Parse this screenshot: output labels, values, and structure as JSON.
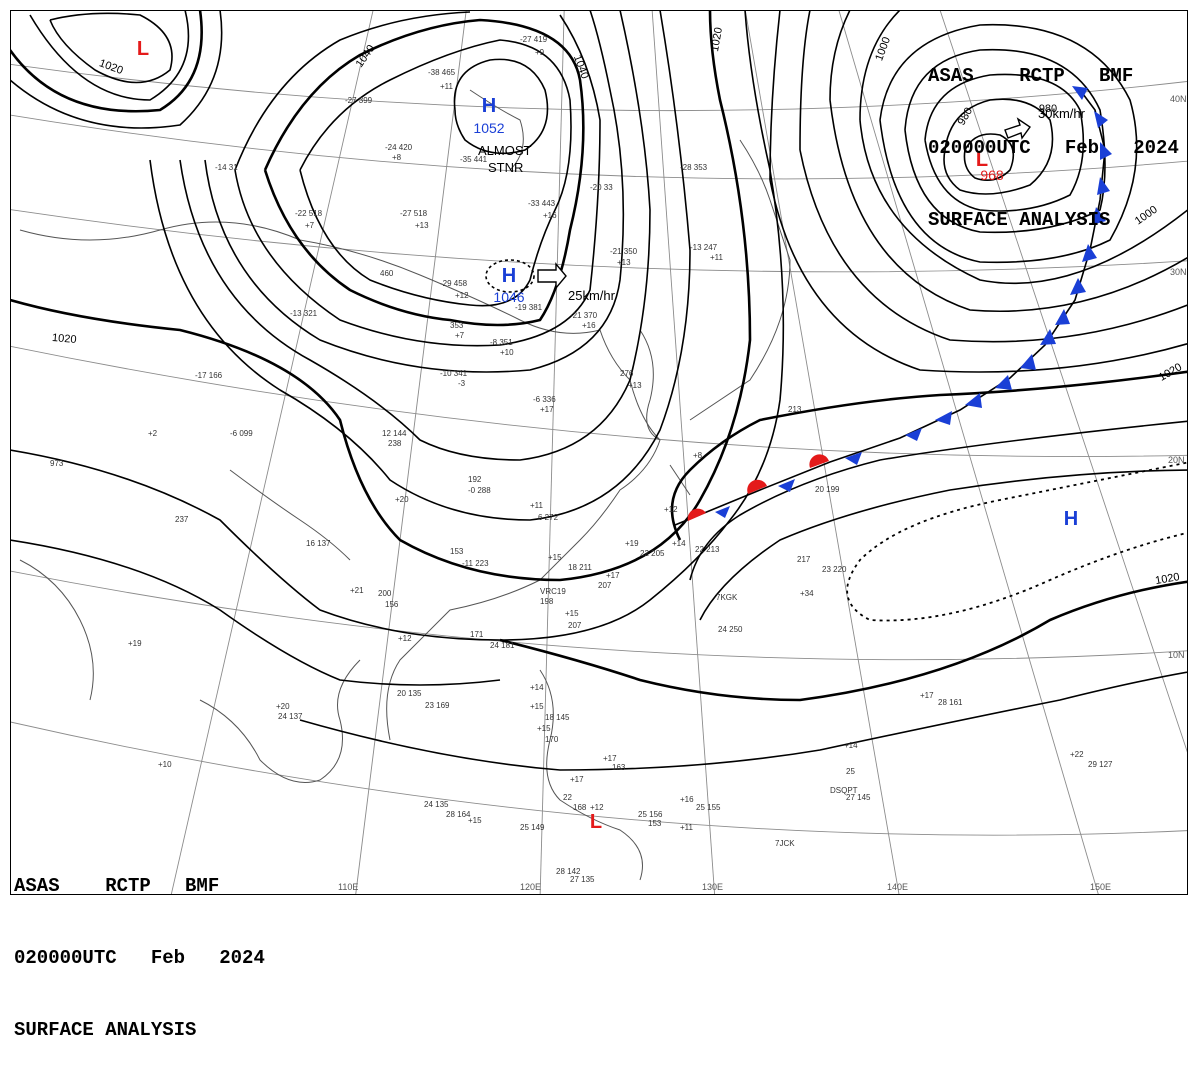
{
  "header": {
    "line1": "ASAS    RCTP   BMF",
    "line2": "020000UTC   Feb   2024",
    "line3": "SURFACE ANALYSIS"
  },
  "colors": {
    "high": "#1a3fd6",
    "low": "#e41a1a",
    "isobar": "#000000",
    "grid": "#8c8c8c",
    "coast": "#555555"
  },
  "pressure_centers": [
    {
      "type": "L",
      "value": ""
    },
    {
      "type": "H",
      "value": "1052"
    },
    {
      "type": "H",
      "value": "1046"
    },
    {
      "type": "L",
      "value": "968"
    },
    {
      "type": "H",
      "value": ""
    },
    {
      "type": "L",
      "value": ""
    }
  ],
  "annotations": {
    "almost": "ALMOST",
    "stnr": "STNR",
    "motion_high": "25km/hr",
    "motion_low": "30km/hr"
  },
  "isobar_labels": [
    "1020",
    "1040",
    "1040",
    "1020",
    "1000",
    "980",
    "980",
    "1000",
    "1020",
    "1020",
    "1020"
  ],
  "latitude_labels": [
    "40N",
    "30N",
    "20N",
    "10N"
  ],
  "longitude_labels": [
    "110E",
    "120E",
    "130E",
    "140E",
    "150E"
  ],
  "station_plots": [
    "-27 419",
    "+9",
    "-38 465",
    "+11",
    "-27 399",
    "-24 420",
    "+8",
    "-14 31",
    "-35 441",
    "-27 518",
    "+13",
    "-22 518",
    "+7",
    "-20 33",
    "-33 443",
    "+16",
    "-28 353",
    "-21 350",
    "+13",
    "-13 247",
    "+11",
    "-29 458",
    "+12",
    "-19 381",
    "-21 370",
    "+16",
    "-13 321",
    "460",
    "353",
    "+7",
    "-8 351",
    "+10",
    "-17 166",
    "-10 341",
    "-3",
    "-6 336",
    "+17",
    "276",
    "+13",
    "-6 099",
    "+2",
    "973",
    "12 144",
    "238",
    "+8",
    "213",
    "192",
    "-0 288",
    "+11",
    "6 272",
    "+20",
    "237",
    "16 137",
    "153",
    "-11 223",
    "+15",
    "18 211",
    "+17",
    "207",
    "+19",
    "22 205",
    "+14",
    "22 213",
    "+12",
    "20 199",
    "217",
    "23 220",
    "+34",
    "7KGK",
    "24 250",
    "VRC19",
    "198",
    "+15",
    "207",
    "+21",
    "200",
    "156",
    "+12",
    "171",
    "24 181",
    "+19",
    "20 135",
    "23 169",
    "+20",
    "24 137",
    "+17",
    "28 161",
    "+14",
    "25",
    "DSQPT",
    "27 145",
    "+22",
    "29 127",
    "+10",
    "24 135",
    "28 164",
    "+15",
    "25 149",
    "+12",
    "25 156",
    "153",
    "+16",
    "25 155",
    "+11",
    "7JCK",
    "28 142",
    "27 135",
    "+15",
    "18 145",
    "+15",
    "170",
    "+17",
    "163",
    "+17",
    "22",
    "168",
    "+14",
    "+16"
  ]
}
